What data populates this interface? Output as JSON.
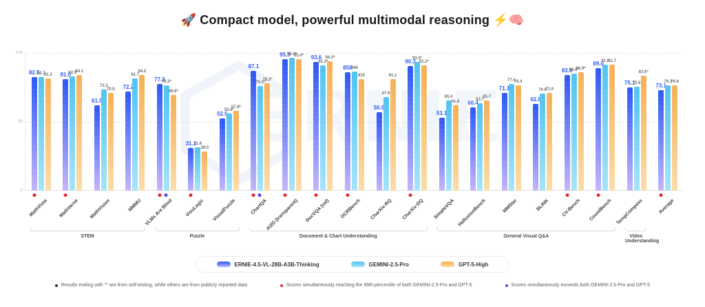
{
  "title": {
    "rocket": "🚀",
    "text": "Compact model, powerful multimodal reasoning",
    "suffix": "⚡🧠"
  },
  "watermark": "ERNIE",
  "legend": [
    {
      "label": "ERNIE-4.5-VL-28B-A3B-Thinking",
      "color_top": "#2b57f5",
      "color_bottom": "#c3b5fa"
    },
    {
      "label": "GEMINI-2.5-Pro",
      "color_top": "#4fc3f0",
      "color_bottom": "#a5e4fa"
    },
    {
      "label": "GPT-5-High",
      "color_top": "#f6af55",
      "color_bottom": "#fcdca8"
    }
  ],
  "footnotes": [
    {
      "color": "#2b2b2b",
      "text": "Results ending with '*' are from self-testing, while others are from publicly reported data"
    },
    {
      "color": "#e8262c",
      "text": "Scores simultaneously reaching the 95th percentile of both GEMINI-2.5-Pro and GPT-5"
    },
    {
      "color": "#4d49f1",
      "text": "Scores simultaneously exceeds both GEMINI-2.5-Pro and GPT-5"
    }
  ],
  "chart_data": {
    "type": "bar",
    "title": "Compact model, powerful multimodal reasoning",
    "ylim": [
      0,
      100
    ],
    "yticks": [
      0,
      50,
      100
    ],
    "grid": "dashed horizontal at 50 and 100",
    "legend_position": "bottom",
    "note": "OCRBench scores are on a 0-1000 scale, plotted divided by 10",
    "series": [
      "ERNIE-4.5-VL-28B-A3B-Thinking",
      "GEMINI-2.5-Pro",
      "GPT-5-High"
    ],
    "dot_colors": {
      "red": "#e8262c",
      "blue": "#4d49f1"
    },
    "groups": [
      {
        "benchmark": "MathVista",
        "values": [
          "82.5",
          "82.7",
          "81.3"
        ],
        "dots": [
          "red"
        ]
      },
      {
        "benchmark": "MathVerse",
        "values": [
          "81.0",
          "82.9",
          "84.1"
        ],
        "dots": [
          "red"
        ]
      },
      {
        "benchmark": "MathVision",
        "values": [
          "61.9",
          "73.3",
          "70.9"
        ],
        "dots": []
      },
      {
        "benchmark": "MMMU",
        "values": [
          "72.2",
          "81.7",
          "84.2"
        ],
        "dots": []
      },
      {
        "benchmark": "VLMs Are Blind",
        "values": [
          "77.3",
          "76.3*",
          "69.6*"
        ],
        "dots": [
          "red",
          "blue"
        ]
      },
      {
        "benchmark": "VisuLogic",
        "values": [
          "31.1",
          "31.6",
          "28.5"
        ],
        "dots": [
          "red"
        ]
      },
      {
        "benchmark": "VisualPuzzle",
        "values": [
          "52.5",
          "55.8*",
          "57.8*"
        ],
        "dots": []
      },
      {
        "benchmark": "ChartQA",
        "values": [
          "87.1",
          "76.2*",
          "78.2*"
        ],
        "dots": [
          "red",
          "blue"
        ]
      },
      {
        "benchmark": "AI2D (transparent)",
        "values": [
          "95.3",
          "96.4*",
          "95.4*"
        ],
        "dots": [
          "red"
        ]
      },
      {
        "benchmark": "DocVQA (val)",
        "values": [
          "93.6",
          "91.2*",
          "94.2*"
        ],
        "dots": [
          "red"
        ]
      },
      {
        "benchmark": "OCRBench",
        "values": [
          "858",
          "866",
          "810"
        ],
        "dots": [
          "red"
        ]
      },
      {
        "benchmark": "CharXiv-RQ",
        "values": [
          "56.9",
          "67.9",
          "81.1"
        ],
        "dots": []
      },
      {
        "benchmark": "CharXiv-DQ",
        "values": [
          "90.3",
          "93.3*",
          "91.2*"
        ],
        "dots": [
          "red"
        ]
      },
      {
        "benchmark": "SimpleVQA",
        "values": [
          "53.1",
          "65.4",
          "61.8"
        ],
        "dots": []
      },
      {
        "benchmark": "HallusionBench",
        "values": [
          "60.4",
          "63.7",
          "65.7"
        ],
        "dots": []
      },
      {
        "benchmark": "MMStar",
        "values": [
          "71.1",
          "77.5",
          "76.4"
        ],
        "dots": []
      },
      {
        "benchmark": "BLINK",
        "values": [
          "62.8",
          "70.6",
          "71.0"
        ],
        "dots": []
      },
      {
        "benchmark": "CV-Bench",
        "values": [
          "83.8",
          "84.8*",
          "85.9*"
        ],
        "dots": [
          "red"
        ]
      },
      {
        "benchmark": "CountBench",
        "values": [
          "89.0",
          "91.6",
          "91.7"
        ],
        "dots": [
          "red"
        ]
      },
      {
        "benchmark": "TempCompass",
        "values": [
          "75.1",
          "75.6",
          "83.6*"
        ],
        "dots": []
      },
      {
        "benchmark": "Average",
        "values": [
          "73.1",
          "76.3",
          "76.6"
        ],
        "dots": [
          "red"
        ]
      }
    ],
    "category_brackets": [
      {
        "label": "STEM",
        "from": 0,
        "to": 3
      },
      {
        "label": "Puzzle",
        "from": 4,
        "to": 6
      },
      {
        "label": "Document & Chart Understanding",
        "from": 7,
        "to": 12
      },
      {
        "label": "General Visual Q&A",
        "from": 13,
        "to": 18
      },
      {
        "label": "Video Understanding",
        "from": 19,
        "to": 19
      }
    ]
  }
}
